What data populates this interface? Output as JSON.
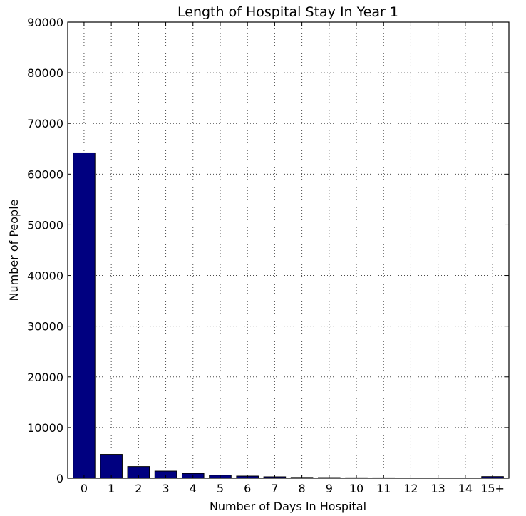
{
  "chart_data": {
    "type": "bar",
    "title": "Length of Hospital Stay In Year 1",
    "xlabel": "Number of Days In Hospital",
    "ylabel": "Number of People",
    "categories": [
      "0",
      "1",
      "2",
      "3",
      "4",
      "5",
      "6",
      "7",
      "8",
      "9",
      "10",
      "11",
      "12",
      "13",
      "14",
      "15+"
    ],
    "values": [
      64200,
      4700,
      2300,
      1400,
      950,
      600,
      420,
      280,
      160,
      130,
      90,
      80,
      60,
      40,
      30,
      320
    ],
    "ylim": [
      0,
      90000
    ],
    "yticks": [
      0,
      10000,
      20000,
      30000,
      40000,
      50000,
      60000,
      70000,
      80000,
      90000
    ],
    "bar_color": "#000080",
    "grid": true,
    "legend": "none"
  }
}
